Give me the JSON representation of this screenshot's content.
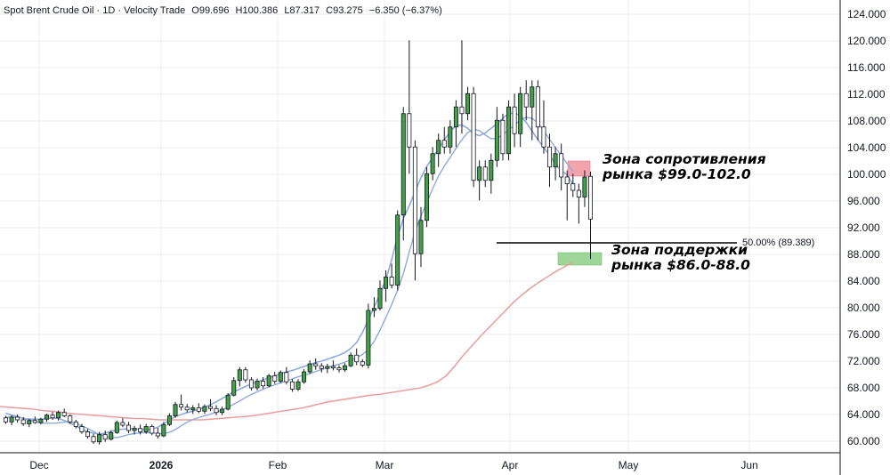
{
  "header": {
    "symbol": "Spot Brent Crude Oil · 1D · Velocity Trade",
    "open": "O99.696",
    "high": "H100.386",
    "low": "L87.317",
    "close": "C93.275",
    "change": "−6.350 (−6.37%)"
  },
  "annotations": {
    "resistance_line1": "Зона сопротивления",
    "resistance_line2": "рынка $99.0-102.0",
    "support_line1": "Зона поддержки",
    "support_line2": "рынка $86.0-88.0",
    "fib_label": "50.00% (89.389)"
  },
  "chart_data": {
    "type": "candlestick",
    "ylim": [
      58.5,
      126
    ],
    "y_ticks": [
      "124.000",
      "120.000",
      "116.000",
      "112.000",
      "108.000",
      "104.000",
      "100.000",
      "96.000",
      "92.000",
      "88.000",
      "84.000",
      "80.000",
      "76.000",
      "72.000",
      "68.000",
      "64.000",
      "60.000"
    ],
    "x_ticks": [
      {
        "label": "Dec",
        "bold": false
      },
      {
        "label": "2026",
        "bold": true
      },
      {
        "label": "Feb",
        "bold": false
      },
      {
        "label": "Mar",
        "bold": false
      },
      {
        "label": "Apr",
        "bold": false
      },
      {
        "label": "May",
        "bold": false
      },
      {
        "label": "Jun",
        "bold": false
      }
    ],
    "resistance_zone": [
      99.0,
      102.0
    ],
    "support_zone": [
      86.0,
      88.0
    ],
    "fib_level": 89.389,
    "colors": {
      "up": "#43a047",
      "down": "#ffffff",
      "wick": "#131722",
      "ma_fast": "#8fa9dc",
      "ma_slow": "#e8a1a1",
      "resistance": "#f2a4ad",
      "support": "#9ed69a",
      "grid": "#e6e6e6"
    },
    "candles": [
      [
        63.5,
        63.8,
        62.6,
        62.9
      ],
      [
        62.9,
        63.9,
        62.4,
        63.6
      ],
      [
        63.6,
        64.0,
        62.8,
        63.2
      ],
      [
        63.2,
        63.6,
        62.3,
        62.6
      ],
      [
        62.6,
        63.4,
        62.1,
        63.1
      ],
      [
        63.1,
        63.7,
        62.6,
        62.8
      ],
      [
        62.8,
        63.5,
        62.5,
        63.3
      ],
      [
        63.3,
        64.1,
        62.9,
        63.9
      ],
      [
        63.9,
        64.4,
        63.2,
        63.5
      ],
      [
        63.5,
        64.6,
        63.1,
        64.3
      ],
      [
        64.3,
        64.9,
        63.6,
        63.8
      ],
      [
        63.8,
        64.0,
        62.6,
        62.9
      ],
      [
        62.9,
        63.2,
        61.9,
        62.2
      ],
      [
        62.2,
        62.6,
        61.1,
        61.4
      ],
      [
        61.4,
        61.8,
        60.4,
        60.7
      ],
      [
        60.7,
        61.1,
        59.6,
        59.9
      ],
      [
        59.9,
        61.4,
        59.5,
        61.0
      ],
      [
        61.0,
        61.6,
        59.9,
        60.3
      ],
      [
        60.3,
        61.6,
        60.1,
        61.3
      ],
      [
        61.3,
        63.1,
        61.1,
        62.8
      ],
      [
        62.8,
        63.5,
        62.1,
        62.4
      ],
      [
        62.4,
        62.9,
        61.2,
        61.6
      ],
      [
        61.6,
        62.3,
        61.0,
        61.9
      ],
      [
        61.9,
        62.5,
        61.0,
        61.4
      ],
      [
        61.4,
        62.6,
        61.1,
        62.2
      ],
      [
        62.2,
        62.5,
        60.9,
        61.2
      ],
      [
        61.2,
        62.0,
        60.4,
        60.8
      ],
      [
        60.8,
        62.9,
        60.6,
        62.5
      ],
      [
        62.5,
        64.2,
        62.3,
        63.8
      ],
      [
        63.8,
        65.9,
        63.5,
        65.5
      ],
      [
        65.5,
        67.0,
        64.6,
        65.1
      ],
      [
        65.1,
        65.6,
        64.3,
        64.7
      ],
      [
        64.7,
        65.4,
        64.1,
        65.0
      ],
      [
        65.0,
        65.7,
        64.2,
        64.5
      ],
      [
        64.5,
        65.5,
        64.1,
        65.2
      ],
      [
        65.2,
        66.3,
        64.5,
        64.9
      ],
      [
        64.9,
        65.4,
        63.9,
        64.3
      ],
      [
        64.3,
        65.2,
        63.9,
        64.8
      ],
      [
        64.8,
        67.2,
        64.6,
        66.9
      ],
      [
        66.9,
        69.6,
        66.7,
        69.1
      ],
      [
        69.1,
        71.1,
        68.2,
        70.7
      ],
      [
        70.7,
        71.1,
        68.8,
        69.2
      ],
      [
        69.2,
        69.6,
        67.6,
        68.0
      ],
      [
        68.0,
        69.4,
        67.6,
        69.0
      ],
      [
        69.0,
        69.6,
        67.9,
        68.3
      ],
      [
        68.3,
        70.1,
        68.1,
        69.8
      ],
      [
        69.8,
        70.4,
        68.6,
        69.0
      ],
      [
        69.0,
        70.6,
        68.7,
        70.3
      ],
      [
        70.3,
        71.1,
        68.5,
        68.9
      ],
      [
        68.9,
        69.3,
        67.4,
        67.8
      ],
      [
        67.8,
        69.3,
        67.5,
        68.9
      ],
      [
        68.9,
        70.8,
        68.6,
        70.4
      ],
      [
        70.4,
        72.1,
        70.1,
        71.6
      ],
      [
        71.6,
        72.4,
        70.7,
        71.3
      ],
      [
        71.3,
        71.7,
        70.3,
        70.9
      ],
      [
        70.9,
        71.6,
        70.2,
        71.2
      ],
      [
        71.2,
        72.1,
        70.6,
        71.0
      ],
      [
        71.0,
        71.4,
        70.3,
        70.7
      ],
      [
        70.7,
        71.7,
        70.4,
        71.3
      ],
      [
        71.3,
        73.3,
        71.1,
        72.9
      ],
      [
        72.9,
        73.9,
        71.4,
        71.9
      ],
      [
        71.9,
        72.3,
        71.1,
        71.4
      ],
      [
        71.4,
        80.6,
        70.9,
        79.6
      ],
      [
        79.6,
        81.6,
        78.6,
        79.9
      ],
      [
        79.9,
        84.1,
        79.6,
        82.9
      ],
      [
        82.9,
        85.6,
        80.9,
        84.6
      ],
      [
        84.6,
        86.6,
        82.9,
        83.4
      ],
      [
        83.4,
        94.6,
        82.6,
        93.9
      ],
      [
        93.9,
        110.1,
        90.1,
        109.1
      ],
      [
        109.1,
        120.1,
        100.1,
        104.1
      ],
      [
        104.1,
        105.1,
        84.1,
        88.1
      ],
      [
        88.1,
        95.1,
        86.1,
        93.1
      ],
      [
        93.1,
        101.1,
        92.1,
        100.1
      ],
      [
        100.1,
        104.1,
        99.1,
        103.1
      ],
      [
        103.1,
        106.1,
        101.1,
        105.1
      ],
      [
        105.1,
        107.1,
        103.1,
        104.1
      ],
      [
        104.1,
        108.1,
        103.1,
        107.1
      ],
      [
        107.1,
        111.1,
        104.1,
        110.1
      ],
      [
        110.1,
        120.1,
        106.1,
        109.1
      ],
      [
        109.1,
        113.1,
        108.1,
        112.1
      ],
      [
        112.1,
        113.1,
        98.1,
        99.1
      ],
      [
        99.1,
        102.1,
        96.1,
        101.1
      ],
      [
        101.1,
        102.1,
        98.1,
        99.1
      ],
      [
        99.1,
        103.1,
        97.1,
        102.1
      ],
      [
        102.1,
        110.1,
        101.1,
        108.1
      ],
      [
        108.1,
        109.1,
        102.1,
        103.1
      ],
      [
        103.1,
        111.1,
        102.1,
        110.1
      ],
      [
        110.1,
        112.1,
        104.1,
        106.1
      ],
      [
        106.1,
        113.1,
        104.1,
        112.1
      ],
      [
        112.1,
        114.1,
        108.1,
        110.1
      ],
      [
        110.1,
        114.1,
        105.1,
        113.1
      ],
      [
        113.1,
        114.1,
        105.1,
        107.1
      ],
      [
        107.1,
        111.1,
        103.1,
        104.1
      ],
      [
        104.1,
        106.1,
        98.1,
        101.1
      ],
      [
        101.1,
        104.1,
        99.1,
        103.1
      ],
      [
        103.1,
        104.6,
        97.6,
        99.6
      ],
      [
        99.6,
        100.6,
        93.1,
        98.6
      ],
      [
        98.6,
        100.1,
        96.6,
        97.6
      ],
      [
        97.6,
        98.6,
        92.6,
        96.6
      ],
      [
        96.6,
        100.6,
        95.1,
        99.6
      ],
      [
        99.7,
        100.4,
        87.3,
        93.3
      ]
    ],
    "ma_fast": [
      64.2,
      63.9,
      63.7,
      63.4,
      63.3,
      63.3,
      63.3,
      63.4,
      63.5,
      63.4,
      63.1,
      62.7,
      62.3,
      61.8,
      61.4,
      61.2,
      61.1,
      61.2,
      61.5,
      61.7,
      61.8,
      61.9,
      61.9,
      61.8,
      61.7,
      61.8,
      62.1,
      62.6,
      63.2,
      63.7,
      64.0,
      64.3,
      64.5,
      64.8,
      65.1,
      65.5,
      65.9,
      66.4,
      66.9,
      67.4,
      67.8,
      68.2,
      68.6,
      68.9,
      69.2,
      69.5,
      69.8,
      70.1,
      70.4,
      70.6,
      70.9,
      71.2,
      71.5,
      71.8,
      72.0,
      72.3,
      72.6,
      72.9,
      73.3,
      73.9,
      74.8,
      76.3,
      78.2,
      80.1,
      82.1,
      84.3,
      87.2,
      90.7,
      93.4,
      95.3,
      97.4,
      99.5,
      101.2,
      102.5,
      103.8,
      105.2,
      106.4,
      107.3,
      107.4,
      106.9,
      106.1,
      105.8,
      106.2,
      106.9,
      107.6,
      108.4,
      109.1,
      109.2,
      108.8,
      107.8,
      106.5,
      105.2,
      104.0,
      102.9,
      101.5,
      100.6,
      99.9,
      98.5
    ],
    "ma_slow": [
      65.2,
      65.1,
      65.0,
      64.9,
      64.8,
      64.6,
      64.5,
      64.4,
      64.2,
      64.1,
      64.0,
      63.9,
      63.8,
      63.7,
      63.6,
      63.5,
      63.4,
      63.4,
      63.3,
      63.2,
      63.2,
      63.2,
      63.2,
      63.2,
      63.2,
      63.3,
      63.4,
      63.5,
      63.6,
      63.7,
      63.8,
      64.0,
      64.2,
      64.4,
      64.6,
      64.8,
      65.0,
      65.3,
      65.6,
      65.9,
      66.1,
      66.3,
      66.5,
      66.7,
      66.9,
      67.0,
      67.2,
      67.4,
      67.6,
      67.8,
      68.0,
      68.4,
      68.9,
      69.8,
      71.2,
      72.8,
      74.2,
      75.6,
      76.9,
      78.2,
      79.5,
      80.8,
      81.9,
      82.9,
      83.8,
      84.6,
      85.4,
      86.1,
      86.8
    ]
  }
}
